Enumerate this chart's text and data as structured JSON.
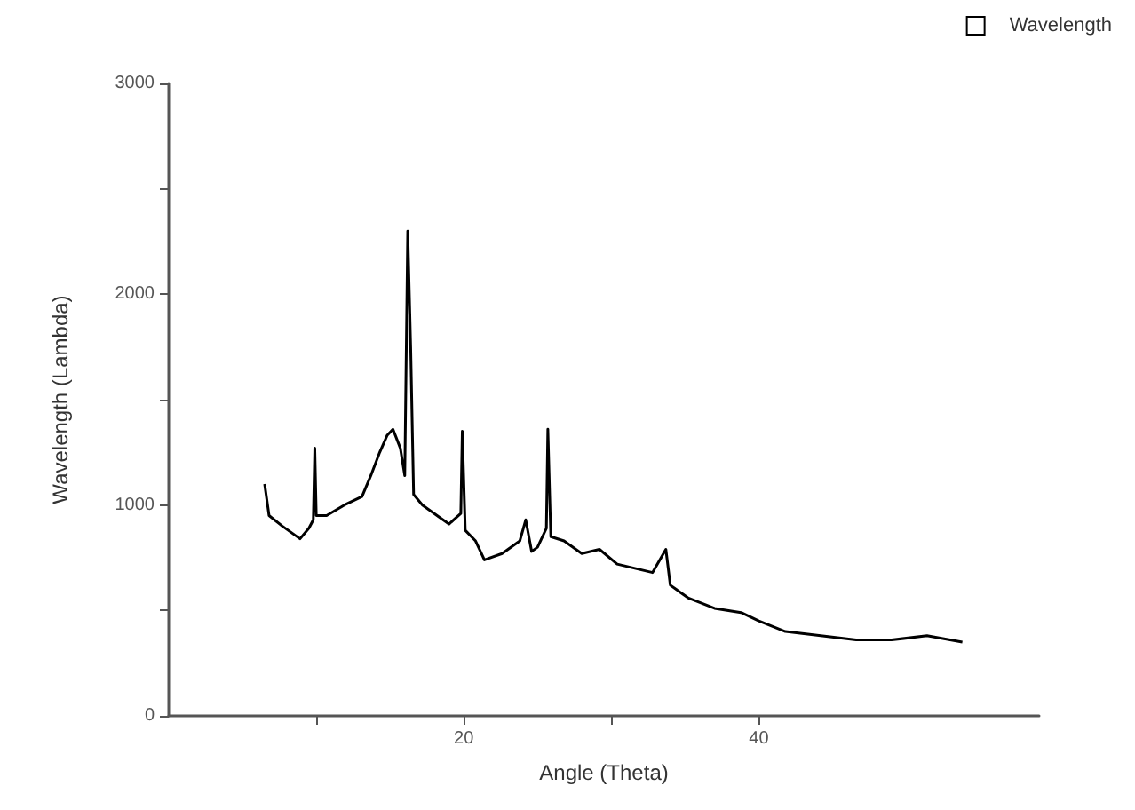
{
  "chart_data": {
    "type": "line",
    "xlabel": "Angle (Theta)",
    "ylabel": "Wavelength (Lambda)",
    "x": [
      6.5,
      6.8,
      7.7,
      8.9,
      9.5,
      9.8,
      9.9,
      10.0,
      10.7,
      11.9,
      13.1,
      13.7,
      14.3,
      14.8,
      15.2,
      15.7,
      16.0,
      16.2,
      16.4,
      16.6,
      17.2,
      18.4,
      19.0,
      19.8,
      19.9,
      20.1,
      20.8,
      21.4,
      22.6,
      23.8,
      24.2,
      24.6,
      25.0,
      25.6,
      25.7,
      25.9,
      26.8,
      28.0,
      29.2,
      30.4,
      31.6,
      32.8,
      33.7,
      34.0,
      35.2,
      37.0,
      38.8,
      40.0,
      41.8,
      44.2,
      46.6,
      49.0,
      51.4,
      53.8
    ],
    "series": [
      {
        "name": "Wavelength",
        "color": "#000000",
        "values": [
          1100,
          950,
          900,
          840,
          890,
          930,
          1270,
          950,
          950,
          1000,
          1040,
          1140,
          1250,
          1330,
          1360,
          1270,
          1140,
          2300,
          1750,
          1050,
          1000,
          940,
          910,
          960,
          1350,
          880,
          830,
          740,
          770,
          830,
          930,
          780,
          800,
          890,
          1360,
          850,
          830,
          770,
          790,
          720,
          700,
          680,
          790,
          620,
          560,
          510,
          490,
          450,
          400,
          380,
          360,
          360,
          380,
          350
        ]
      }
    ],
    "xlim": [
      0,
      59
    ],
    "xticks": [
      {
        "value": 10,
        "label": null
      },
      20,
      {
        "value": 30,
        "label": null
      },
      40
    ],
    "ylim": [
      0,
      3000
    ],
    "yticks": [
      0,
      {
        "value": 500,
        "label": null
      },
      1000,
      {
        "value": 1500,
        "label": null
      },
      2000,
      {
        "value": 2500,
        "label": null
      },
      3000
    ],
    "legend": "top right",
    "grid": false,
    "marker": "none",
    "line_style": "solid"
  }
}
